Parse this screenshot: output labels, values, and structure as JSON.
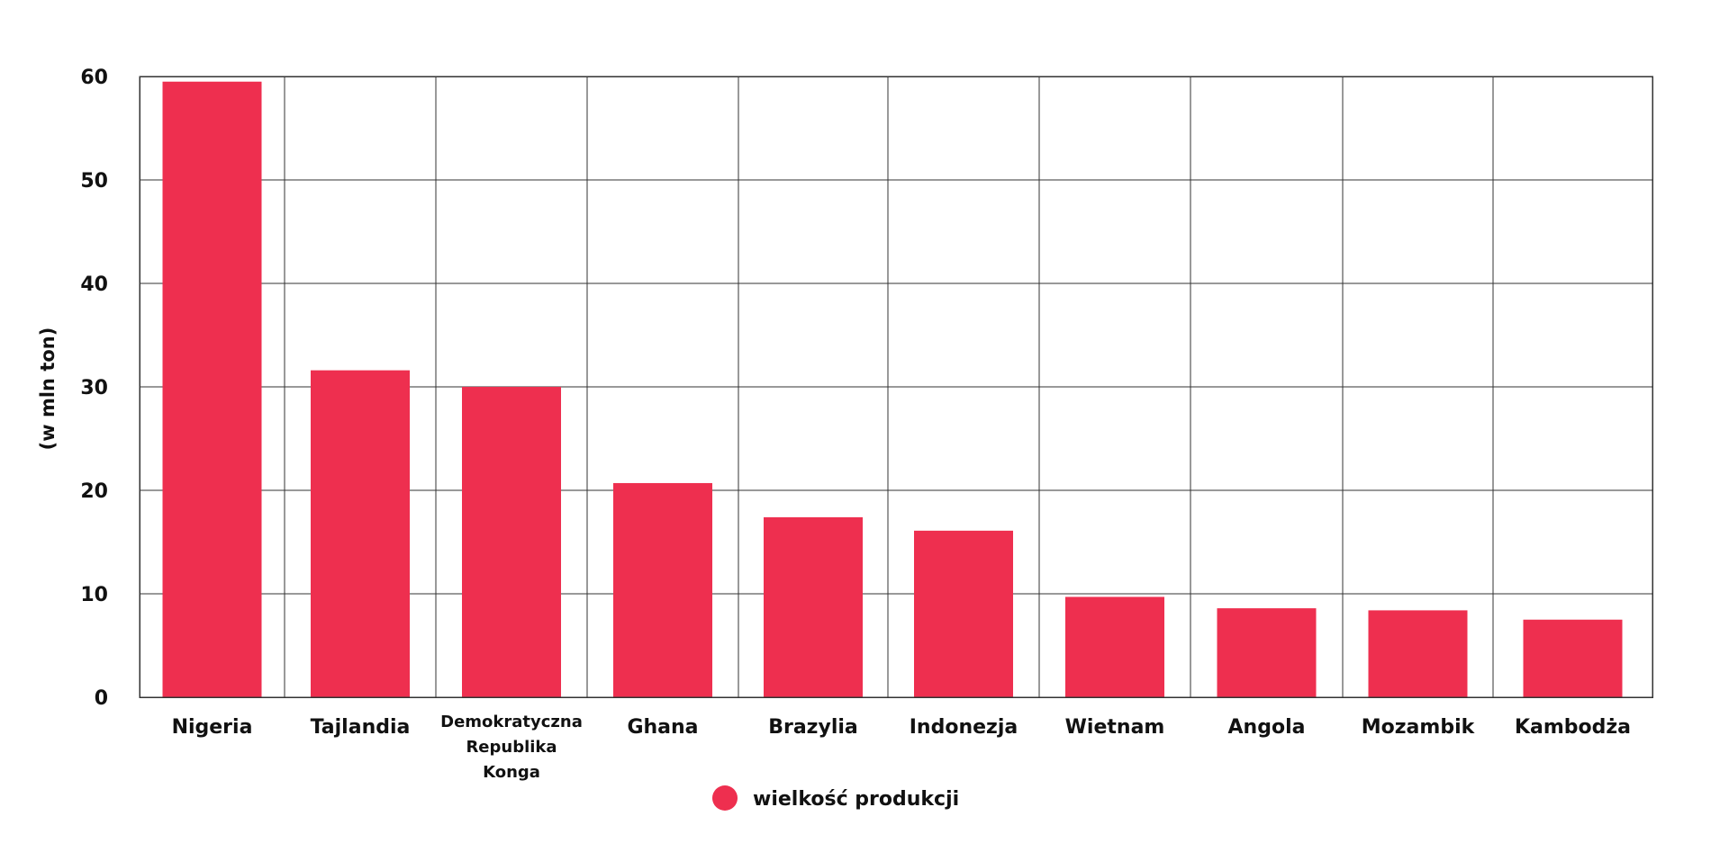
{
  "chart_data": {
    "type": "bar",
    "categories": [
      [
        "Nigeria"
      ],
      [
        "Tajlandia"
      ],
      [
        "Demokratyczna",
        "Republika",
        "Konga"
      ],
      [
        "Ghana"
      ],
      [
        "Brazylia"
      ],
      [
        "Indonezja"
      ],
      [
        "Wietnam"
      ],
      [
        "Angola"
      ],
      [
        "Mozambik"
      ],
      [
        "Kambodża"
      ]
    ],
    "series": [
      {
        "name": "wielkość produkcji",
        "color": "#ee2f4f",
        "values": [
          59.5,
          31.6,
          30.0,
          20.7,
          17.4,
          16.1,
          9.7,
          8.6,
          8.4,
          7.5
        ]
      }
    ],
    "ylabel": "(w mln ton)",
    "xlabel": "",
    "ylim": [
      0,
      60
    ],
    "yticks": [
      0,
      10,
      20,
      30,
      40,
      50,
      60
    ],
    "grid": true,
    "legend_placement": "bottom-center"
  }
}
